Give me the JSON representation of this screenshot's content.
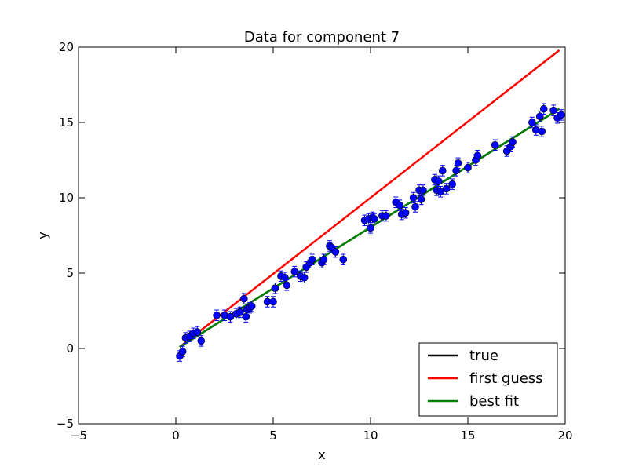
{
  "chart_data": {
    "type": "scatter",
    "title": "Data for component 7",
    "xlabel": "x",
    "ylabel": "y",
    "xlim": [
      -5,
      20
    ],
    "ylim": [
      -5,
      20
    ],
    "xticks": [
      "−5",
      "0",
      "5",
      "10",
      "15",
      "20"
    ],
    "yticks": [
      "−5",
      "0",
      "5",
      "10",
      "15",
      "20"
    ],
    "xtick_values": [
      -5,
      0,
      5,
      10,
      15,
      20
    ],
    "ytick_values": [
      -5,
      0,
      5,
      10,
      15,
      20
    ],
    "grid": false,
    "legend_position": "lower-right",
    "lines": [
      {
        "name": "true",
        "color": "#000000",
        "x": [
          0.2,
          19.7
        ],
        "y": [
          0.1,
          15.9
        ]
      },
      {
        "name": "first guess",
        "color": "#ff0000",
        "x": [
          0.2,
          19.7
        ],
        "y": [
          0.1,
          19.8
        ]
      },
      {
        "name": "best fit",
        "color": "#008000",
        "x": [
          0.2,
          19.7
        ],
        "y": [
          0.1,
          15.9
        ]
      }
    ],
    "points": {
      "color": "#0000ff",
      "yerr": 0.35,
      "x": [
        0.2,
        0.35,
        0.5,
        0.7,
        0.9,
        1.1,
        1.3,
        2.1,
        2.5,
        2.8,
        3.1,
        3.3,
        3.5,
        3.6,
        3.65,
        3.8,
        3.9,
        4.7,
        5.0,
        5.1,
        5.4,
        5.6,
        5.7,
        6.1,
        6.4,
        6.6,
        6.7,
        6.9,
        7.0,
        7.5,
        7.6,
        7.9,
        8.0,
        8.2,
        8.6,
        9.7,
        9.9,
        10.0,
        10.1,
        10.2,
        10.6,
        10.8,
        11.3,
        11.5,
        11.6,
        11.8,
        12.2,
        12.3,
        12.5,
        12.6,
        12.7,
        13.3,
        13.4,
        13.5,
        13.6,
        13.7,
        13.9,
        14.2,
        14.4,
        14.5,
        15.0,
        15.4,
        15.5,
        16.4,
        17.0,
        17.2,
        17.3,
        18.3,
        18.5,
        18.7,
        18.8,
        18.9,
        19.4,
        19.6,
        19.8
      ],
      "y": [
        -0.5,
        -0.2,
        0.7,
        0.8,
        1.0,
        1.1,
        0.5,
        2.2,
        2.2,
        2.1,
        2.3,
        2.4,
        3.3,
        2.1,
        2.6,
        2.7,
        2.8,
        3.1,
        3.1,
        4.0,
        4.8,
        4.7,
        4.2,
        5.1,
        4.8,
        4.7,
        5.4,
        5.7,
        5.9,
        5.7,
        5.9,
        6.8,
        6.7,
        6.4,
        5.9,
        8.5,
        8.6,
        8.0,
        8.7,
        8.6,
        8.8,
        8.8,
        9.7,
        9.5,
        8.9,
        9.0,
        10.0,
        9.4,
        10.5,
        9.9,
        10.5,
        11.2,
        10.5,
        11.1,
        10.4,
        11.8,
        10.6,
        10.9,
        11.8,
        12.3,
        12.0,
        12.5,
        12.8,
        13.5,
        13.1,
        13.4,
        13.7,
        15.0,
        14.5,
        15.4,
        14.4,
        15.9,
        15.8,
        15.3,
        15.5
      ]
    }
  }
}
